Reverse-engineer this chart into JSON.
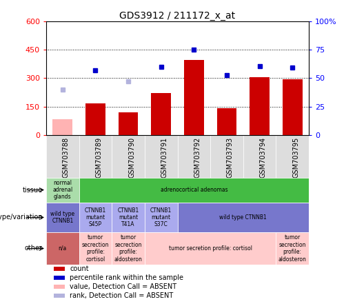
{
  "title": "GDS3912 / 211172_x_at",
  "samples": [
    "GSM703788",
    "GSM703789",
    "GSM703790",
    "GSM703791",
    "GSM703792",
    "GSM703793",
    "GSM703794",
    "GSM703795"
  ],
  "count_values": [
    null,
    165,
    120,
    220,
    395,
    143,
    305,
    295
  ],
  "count_absent": [
    82,
    null,
    null,
    null,
    null,
    null,
    null,
    null
  ],
  "rank_values": [
    null,
    340,
    null,
    360,
    450,
    315,
    365,
    355
  ],
  "rank_absent": [
    240,
    null,
    285,
    null,
    null,
    null,
    null,
    null
  ],
  "ylim_left": [
    0,
    600
  ],
  "ylim_right": [
    0,
    100
  ],
  "yticks_left": [
    0,
    150,
    300,
    450,
    600
  ],
  "yticks_right": [
    0,
    25,
    50,
    75,
    100
  ],
  "ytick_labels_left": [
    "0",
    "150",
    "300",
    "450",
    "600"
  ],
  "ytick_labels_right": [
    "0",
    "25",
    "50",
    "75",
    "100%"
  ],
  "hline_values": [
    150,
    300,
    450
  ],
  "bar_color": "#cc0000",
  "bar_absent_color": "#ffb3b3",
  "rank_color": "#0000cc",
  "rank_absent_color": "#b3b3dd",
  "tissue_cells": [
    {
      "text": "normal\nadrenal\nglands",
      "color": "#aaddaa",
      "span": 1
    },
    {
      "text": "adrenocortical adenomas",
      "color": "#44bb44",
      "span": 7
    }
  ],
  "genotype_cells": [
    {
      "text": "wild type\nCTNNB1",
      "color": "#7777cc",
      "span": 1
    },
    {
      "text": "CTNNB1\nmutant\nS45P",
      "color": "#aaaaee",
      "span": 1
    },
    {
      "text": "CTNNB1\nmutant\nT41A",
      "color": "#aaaaee",
      "span": 1
    },
    {
      "text": "CTNNB1\nmutant\nS37C",
      "color": "#aaaaee",
      "span": 1
    },
    {
      "text": "wild type CTNNB1",
      "color": "#7777cc",
      "span": 4
    }
  ],
  "other_cells": [
    {
      "text": "n/a",
      "color": "#cc6666",
      "span": 1
    },
    {
      "text": "tumor\nsecrection\nprofile:\ncortisol",
      "color": "#ffcccc",
      "span": 1
    },
    {
      "text": "tumor\nsecrection\nprofile:\naldosteron",
      "color": "#ffcccc",
      "span": 1
    },
    {
      "text": "tumor secretion profile: cortisol",
      "color": "#ffcccc",
      "span": 4
    },
    {
      "text": "tumor\nsecrection\nprofile:\naldosteron",
      "color": "#ffcccc",
      "span": 1
    }
  ],
  "row_labels": [
    "tissue",
    "genotype/variation",
    "other"
  ],
  "legend_items": [
    {
      "color": "#cc0000",
      "label": "count"
    },
    {
      "color": "#0000cc",
      "label": "percentile rank within the sample"
    },
    {
      "color": "#ffb3b3",
      "label": "value, Detection Call = ABSENT"
    },
    {
      "color": "#b3b3dd",
      "label": "rank, Detection Call = ABSENT"
    }
  ],
  "bg_color": "#ffffff"
}
